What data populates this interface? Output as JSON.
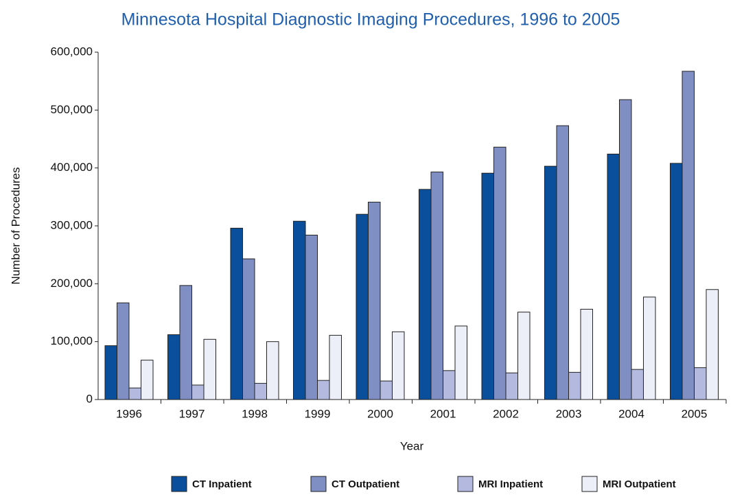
{
  "chart_data": {
    "type": "bar",
    "title": "Minnesota Hospital Diagnostic Imaging Procedures, 1996 to 2005",
    "x_label": "Year",
    "y_label": "Number of Procedures",
    "categories": [
      "1996",
      "1997",
      "1998",
      "1999",
      "2000",
      "2001",
      "2002",
      "2003",
      "2004",
      "2005"
    ],
    "series": [
      {
        "name": "CT Inpatient",
        "color": "#0a4f9c",
        "values": [
          93000,
          112000,
          296000,
          308000,
          320000,
          363000,
          391000,
          403000,
          424000,
          408000
        ]
      },
      {
        "name": "CT Outpatient",
        "color": "#7f8fc4",
        "values": [
          167000,
          197000,
          243000,
          284000,
          341000,
          393000,
          436000,
          473000,
          518000,
          567000
        ]
      },
      {
        "name": "MRI Inpatient",
        "color": "#b3b9df",
        "values": [
          20000,
          25000,
          28000,
          33000,
          32000,
          50000,
          46000,
          47000,
          52000,
          55000
        ]
      },
      {
        "name": "MRI Outpatient",
        "color": "#eceef8",
        "values": [
          68000,
          104000,
          100000,
          111000,
          117000,
          127000,
          151000,
          156000,
          177000,
          190000
        ]
      }
    ],
    "ylim": [
      0,
      600000
    ],
    "yticks": [
      0,
      {
        "value": 100000,
        "label": "100,000"
      },
      {
        "value": 200000,
        "label": "200,000"
      },
      {
        "value": 300000,
        "label": "300,000"
      },
      {
        "value": 400000,
        "label": "400,000"
      },
      {
        "value": 500000,
        "label": "500,000"
      },
      {
        "value": 600000,
        "label": "600,000"
      }
    ],
    "legend": "bottom",
    "grid": false
  }
}
